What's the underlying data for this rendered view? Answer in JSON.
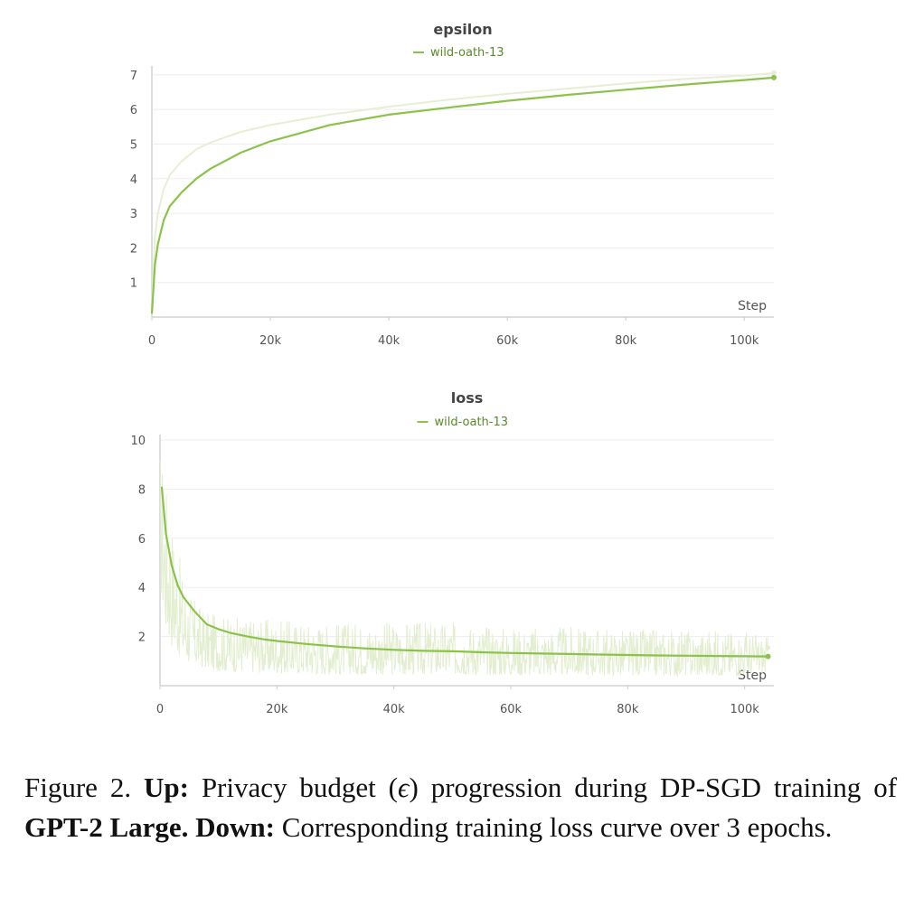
{
  "chart_data": [
    {
      "type": "line",
      "title": "epsilon",
      "legend": [
        "wild-oath-13"
      ],
      "legend_placement": "top-center",
      "xlabel": "Step",
      "ylabel": "",
      "xlim": [
        0,
        105000
      ],
      "ylim": [
        0,
        7.1
      ],
      "xticks": [
        0,
        20000,
        40000,
        60000,
        80000,
        100000
      ],
      "xtick_labels": [
        "0",
        "20k",
        "40k",
        "60k",
        "80k",
        "100k"
      ],
      "yticks": [
        1,
        2,
        3,
        4,
        5,
        6,
        7
      ],
      "ytick_labels": [
        "1",
        "2",
        "3",
        "4",
        "5",
        "6",
        "7"
      ],
      "grid": true,
      "series": [
        {
          "name": "wild-oath-13",
          "color": "#8bc34a",
          "x": [
            0,
            500,
            1000,
            2000,
            3000,
            5000,
            7500,
            10000,
            15000,
            20000,
            30000,
            40000,
            50000,
            60000,
            70000,
            80000,
            90000,
            100000,
            105000
          ],
          "y": [
            0.1,
            1.5,
            2.1,
            2.8,
            3.2,
            3.6,
            4.0,
            4.3,
            4.75,
            5.08,
            5.55,
            5.85,
            6.05,
            6.25,
            6.42,
            6.57,
            6.72,
            6.85,
            6.92
          ]
        },
        {
          "name": "",
          "color": "#e6efd6",
          "x": [
            0,
            500,
            1000,
            2000,
            3000,
            5000,
            7500,
            10000,
            15000,
            20000,
            30000,
            40000,
            50000,
            60000,
            70000,
            80000,
            90000,
            100000,
            105000
          ],
          "y": [
            0.1,
            2.3,
            3.0,
            3.7,
            4.1,
            4.5,
            4.85,
            5.05,
            5.35,
            5.55,
            5.85,
            6.08,
            6.28,
            6.45,
            6.6,
            6.75,
            6.88,
            6.98,
            7.05
          ]
        }
      ]
    },
    {
      "type": "line",
      "title": "loss",
      "legend": [
        "wild-oath-13"
      ],
      "legend_placement": "top-center",
      "xlabel": "Step",
      "ylabel": "",
      "xlim": [
        0,
        105000
      ],
      "ylim": [
        0,
        10
      ],
      "xticks": [
        0,
        20000,
        40000,
        60000,
        80000,
        100000
      ],
      "xtick_labels": [
        "0",
        "20k",
        "40k",
        "60k",
        "80k",
        "100k"
      ],
      "yticks": [
        2,
        4,
        6,
        8,
        10
      ],
      "ytick_labels": [
        "2",
        "4",
        "6",
        "8",
        "10"
      ],
      "grid": true,
      "series": [
        {
          "name": "wild-oath-13",
          "color": "#8bc34a",
          "x": [
            300,
            1000,
            2000,
            3000,
            4000,
            5000,
            6000,
            7000,
            8000,
            10000,
            12000,
            15000,
            18000,
            20000,
            25000,
            30000,
            35000,
            40000,
            45000,
            50000,
            55000,
            60000,
            65000,
            70000,
            75000,
            80000,
            85000,
            90000,
            95000,
            100000,
            104000
          ],
          "y": [
            8.1,
            6.2,
            4.9,
            4.1,
            3.6,
            3.3,
            3.0,
            2.75,
            2.5,
            2.3,
            2.15,
            2.0,
            1.88,
            1.82,
            1.7,
            1.6,
            1.52,
            1.46,
            1.42,
            1.4,
            1.36,
            1.33,
            1.31,
            1.29,
            1.27,
            1.25,
            1.23,
            1.22,
            1.21,
            1.2,
            1.19
          ]
        },
        {
          "name": "",
          "color": "#e3eed0",
          "noise": true,
          "x": [
            0,
            1000,
            2000,
            4000,
            6000,
            8000,
            10000,
            15000,
            20000,
            30000,
            40000,
            50000,
            60000,
            70000,
            80000,
            90000,
            100000,
            104000
          ],
          "y_low": [
            4.0,
            2.2,
            1.6,
            1.0,
            0.8,
            0.7,
            0.6,
            0.55,
            0.5,
            0.45,
            0.45,
            0.45,
            0.42,
            0.42,
            0.4,
            0.4,
            0.4,
            0.5
          ],
          "y_high": [
            10.0,
            8.5,
            7.0,
            4.5,
            3.5,
            3.0,
            2.9,
            2.8,
            2.7,
            2.6,
            2.6,
            2.6,
            2.4,
            2.4,
            2.3,
            2.3,
            2.3,
            2.0
          ]
        }
      ]
    }
  ],
  "caption": {
    "figure_label": "Figure 2.",
    "up_label": "Up:",
    "up_text_1": "Privacy budget (",
    "epsilon_symbol": "ϵ",
    "up_text_2": ") progression during DP-SGD training of",
    "model_name": "GPT-2 Large.",
    "down_label": "Down:",
    "down_text": "Corresponding training loss curve over 3 epochs."
  }
}
